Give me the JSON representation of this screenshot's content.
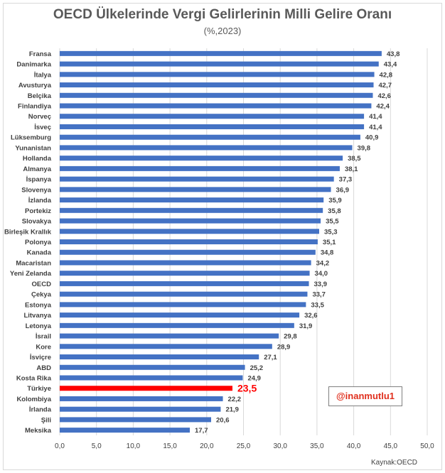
{
  "chart_data": {
    "type": "bar",
    "orientation": "horizontal",
    "title": "OECD Ülkelerinde Vergi Gelirlerinin Milli Gelire Oranı",
    "subtitle": "(%,2023)",
    "categories": [
      "Fransa",
      "Danimarka",
      "İtalya",
      "Avusturya",
      "Belçika",
      "Finlandiya",
      "Norveç",
      "İsveç",
      "Lüksemburg",
      "Yunanistan",
      "Hollanda",
      "Almanya",
      "İspanya",
      "Slovenya",
      "İzlanda",
      "Portekiz",
      "Slovakya",
      "Birleşik Krallık",
      "Polonya",
      "Kanada",
      "Macaristan",
      "Yeni Zelanda",
      "OECD",
      "Çekya",
      "Estonya",
      "Litvanya",
      "Letonya",
      "İsrail",
      "Kore",
      "İsviçre",
      "ABD",
      "Kosta Rika",
      "Türkiye",
      "Kolombiya",
      "İrlanda",
      "Şili",
      "Meksika"
    ],
    "values": [
      43.8,
      43.4,
      42.8,
      42.7,
      42.6,
      42.4,
      41.4,
      41.4,
      40.9,
      39.8,
      38.5,
      38.1,
      37.3,
      36.9,
      35.9,
      35.8,
      35.5,
      35.3,
      35.1,
      34.8,
      34.2,
      34.0,
      33.9,
      33.7,
      33.5,
      32.6,
      31.9,
      29.8,
      28.9,
      27.1,
      25.2,
      24.9,
      23.5,
      22.2,
      21.9,
      20.6,
      17.7
    ],
    "value_labels": [
      "43,8",
      "43,4",
      "42,8",
      "42,7",
      "42,6",
      "42,4",
      "41,4",
      "41,4",
      "40,9",
      "39,8",
      "38,5",
      "38,1",
      "37,3",
      "36,9",
      "35,9",
      "35,8",
      "35,5",
      "35,3",
      "35,1",
      "34,8",
      "34,2",
      "34,0",
      "33,9",
      "33,7",
      "33,5",
      "32,6",
      "31,9",
      "29,8",
      "28,9",
      "27,1",
      "25,2",
      "24,9",
      "23,5",
      "22,2",
      "21,9",
      "20,6",
      "17,7"
    ],
    "highlight_index": 32,
    "xlim": [
      0,
      50
    ],
    "x_ticks": [
      "0,0",
      "5,0",
      "10,0",
      "15,0",
      "20,0",
      "25,0",
      "30,0",
      "35,0",
      "40,0",
      "45,0",
      "50,0"
    ],
    "grid": true,
    "colors": {
      "bar": "#4472c4",
      "highlight": "#ff0000",
      "grid": "#d9d9d9"
    }
  },
  "annotation": {
    "handle": "@inanmutlu1"
  },
  "source": "Kaynak:OECD"
}
